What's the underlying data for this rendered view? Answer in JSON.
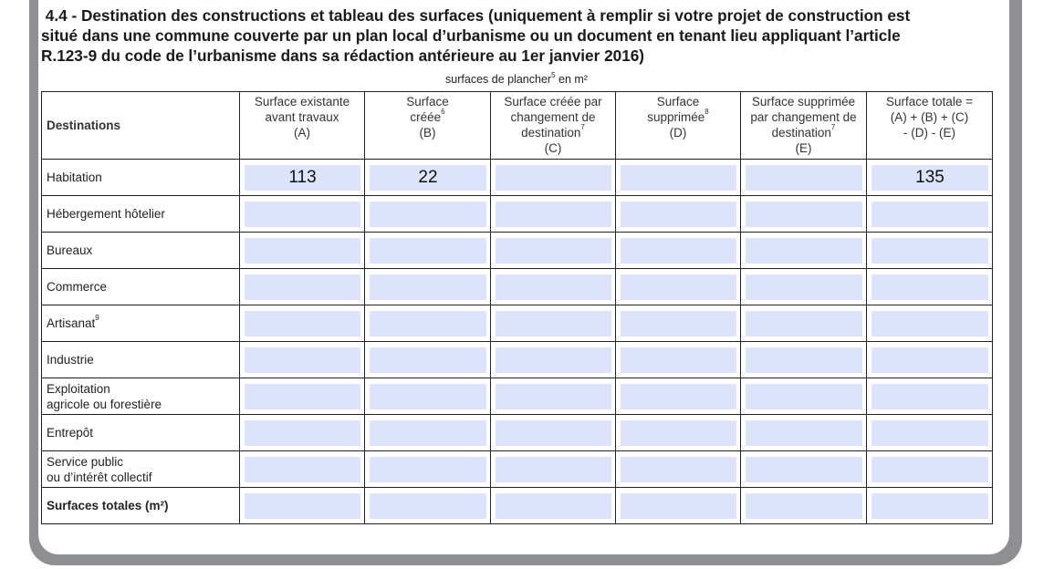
{
  "section": {
    "title_lines": [
      " 4.4 - Destination des constructions et tableau des surfaces (uniquement à remplir si votre projet de construction est",
      "situé dans une commune couverte par un plan local d’urbanisme ou un document en tenant lieu appliquant l’article",
      "R.123-9 du code de l’urbanisme dans sa rédaction antérieure au 1er janvier 2016)"
    ],
    "unit_label": "surfaces de plancher",
    "unit_sup": "5",
    "unit_suffix": " en m²"
  },
  "table": {
    "headers": [
      {
        "lines": [
          "Destinations"
        ]
      },
      {
        "lines": [
          "Surface existante",
          "avant travaux",
          "(A)"
        ]
      },
      {
        "lines": [
          "Surface",
          "créée",
          "(B)"
        ],
        "sup": "6"
      },
      {
        "lines": [
          "Surface créée par",
          "changement de",
          "destination",
          "(C)"
        ],
        "sup": "7"
      },
      {
        "lines": [
          "Surface",
          "supprimée",
          "(D)"
        ],
        "sup": "8"
      },
      {
        "lines": [
          "Surface supprimée",
          "par changement de",
          "destination",
          "(E)"
        ],
        "sup": "7"
      },
      {
        "lines": [
          "Surface totale =",
          "(A) + (B) + (C)",
          "- (D) - (E)"
        ]
      }
    ],
    "rows": [
      {
        "label": [
          "Habitation"
        ],
        "values": [
          "113",
          "22",
          "",
          "",
          "",
          "135"
        ]
      },
      {
        "label": [
          "Hébergement hôtelier"
        ],
        "values": [
          "",
          "",
          "",
          "",
          "",
          ""
        ]
      },
      {
        "label": [
          "Bureaux"
        ],
        "values": [
          "",
          "",
          "",
          "",
          "",
          ""
        ]
      },
      {
        "label": [
          "Commerce"
        ],
        "values": [
          "",
          "",
          "",
          "",
          "",
          ""
        ]
      },
      {
        "label": [
          "Artisanat"
        ],
        "sup": "9",
        "values": [
          "",
          "",
          "",
          "",
          "",
          ""
        ]
      },
      {
        "label": [
          "Industrie"
        ],
        "values": [
          "",
          "",
          "",
          "",
          "",
          ""
        ]
      },
      {
        "label": [
          "Exploitation",
          "agricole ou forestière"
        ],
        "values": [
          "",
          "",
          "",
          "",
          "",
          ""
        ]
      },
      {
        "label": [
          "Entrepôt"
        ],
        "values": [
          "",
          "",
          "",
          "",
          "",
          ""
        ]
      },
      {
        "label": [
          "Service public",
          "ou d’intérêt collectif"
        ],
        "values": [
          "",
          "",
          "",
          "",
          "",
          ""
        ]
      },
      {
        "label": [
          "Surfaces totales (m²)"
        ],
        "bold": true,
        "values": [
          "",
          "",
          "",
          "",
          "",
          ""
        ]
      }
    ]
  },
  "colors": {
    "field_bg": "#dde3fb",
    "frame": "#8e8f92"
  }
}
